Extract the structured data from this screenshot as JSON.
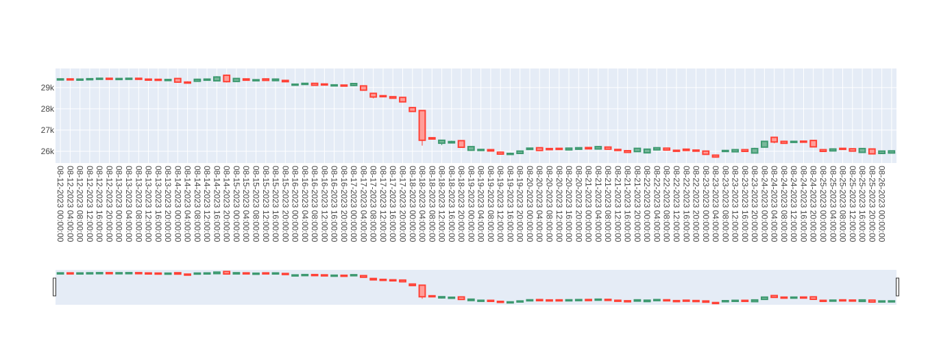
{
  "chart_data": {
    "type": "candlestick",
    "title": "",
    "xlabel": "",
    "ylabel": "",
    "x_start": "2023-08-12 00:00",
    "interval_hours": 4,
    "x_tick_labels": [
      "08-12-2023 00:00:00",
      "08-12-2023 04:00:00",
      "08-12-2023 08:00:00",
      "08-12-2023 12:00:00",
      "08-12-2023 16:00:00",
      "08-12-2023 20:00:00",
      "08-13-2023 00:00:00",
      "08-13-2023 04:00:00",
      "08-13-2023 08:00:00",
      "08-13-2023 12:00:00",
      "08-13-2023 16:00:00",
      "08-13-2023 20:00:00",
      "08-14-2023 00:00:00",
      "08-14-2023 04:00:00",
      "08-14-2023 08:00:00",
      "08-14-2023 12:00:00",
      "08-14-2023 16:00:00",
      "08-14-2023 20:00:00",
      "08-15-2023 00:00:00",
      "08-15-2023 04:00:00",
      "08-15-2023 08:00:00",
      "08-15-2023 12:00:00",
      "08-15-2023 16:00:00",
      "08-15-2023 20:00:00",
      "08-16-2023 00:00:00",
      "08-16-2023 04:00:00",
      "08-16-2023 08:00:00",
      "08-16-2023 12:00:00",
      "08-16-2023 16:00:00",
      "08-16-2023 20:00:00",
      "08-17-2023 00:00:00",
      "08-17-2023 04:00:00",
      "08-17-2023 08:00:00",
      "08-17-2023 12:00:00",
      "08-17-2023 16:00:00",
      "08-17-2023 20:00:00",
      "08-18-2023 00:00:00",
      "08-18-2023 04:00:00",
      "08-18-2023 08:00:00",
      "08-18-2023 12:00:00",
      "08-18-2023 16:00:00",
      "08-18-2023 20:00:00",
      "08-19-2023 00:00:00",
      "08-19-2023 04:00:00",
      "08-19-2023 08:00:00",
      "08-19-2023 12:00:00",
      "08-19-2023 16:00:00",
      "08-19-2023 20:00:00",
      "08-20-2023 00:00:00",
      "08-20-2023 04:00:00",
      "08-20-2023 08:00:00",
      "08-20-2023 12:00:00",
      "08-20-2023 16:00:00",
      "08-20-2023 20:00:00",
      "08-21-2023 00:00:00",
      "08-21-2023 04:00:00",
      "08-21-2023 08:00:00",
      "08-21-2023 12:00:00",
      "08-21-2023 16:00:00",
      "08-21-2023 20:00:00",
      "08-22-2023 00:00:00",
      "08-22-2023 04:00:00",
      "08-22-2023 08:00:00",
      "08-22-2023 12:00:00",
      "08-22-2023 16:00:00",
      "08-22-2023 20:00:00",
      "08-23-2023 00:00:00",
      "08-23-2023 04:00:00",
      "08-23-2023 08:00:00",
      "08-23-2023 12:00:00",
      "08-23-2023 16:00:00",
      "08-23-2023 20:00:00",
      "08-24-2023 00:00:00",
      "08-24-2023 04:00:00",
      "08-24-2023 08:00:00",
      "08-24-2023 12:00:00",
      "08-24-2023 16:00:00",
      "08-24-2023 20:00:00",
      "08-25-2023 00:00:00",
      "08-25-2023 04:00:00",
      "08-25-2023 08:00:00",
      "08-25-2023 12:00:00",
      "08-25-2023 16:00:00",
      "08-25-2023 20:00:00",
      "08-26-2023 00:00:00"
    ],
    "y_tick_values": [
      26000,
      27000,
      28000,
      29000
    ],
    "y_tick_labels": [
      "26k",
      "27k",
      "28k",
      "29k"
    ],
    "ylim": [
      25450,
      29900
    ],
    "grid": true,
    "legend": "none",
    "rangeslider": true,
    "colors": {
      "increasing": "#3d9970",
      "increasing_fill": "#78b89b",
      "decreasing": "#ff4136",
      "decreasing_fill": "#ff9e99",
      "plot_bg": "#e5ecf6",
      "grid": "#ffffff",
      "tick_text": "#444444",
      "slider_handle": "#333333"
    },
    "candles": [
      {
        "o": 29400,
        "h": 29430,
        "l": 29380,
        "c": 29410
      },
      {
        "o": 29410,
        "h": 29430,
        "l": 29380,
        "c": 29390
      },
      {
        "o": 29390,
        "h": 29420,
        "l": 29370,
        "c": 29400
      },
      {
        "o": 29400,
        "h": 29430,
        "l": 29380,
        "c": 29420
      },
      {
        "o": 29420,
        "h": 29450,
        "l": 29400,
        "c": 29440
      },
      {
        "o": 29440,
        "h": 29460,
        "l": 29410,
        "c": 29420
      },
      {
        "o": 29420,
        "h": 29450,
        "l": 29400,
        "c": 29430
      },
      {
        "o": 29430,
        "h": 29460,
        "l": 29410,
        "c": 29440
      },
      {
        "o": 29440,
        "h": 29450,
        "l": 29390,
        "c": 29400
      },
      {
        "o": 29400,
        "h": 29420,
        "l": 29370,
        "c": 29390
      },
      {
        "o": 29390,
        "h": 29400,
        "l": 29350,
        "c": 29360
      },
      {
        "o": 29360,
        "h": 29400,
        "l": 29340,
        "c": 29380
      },
      {
        "o": 29430,
        "h": 29450,
        "l": 29230,
        "c": 29260
      },
      {
        "o": 29260,
        "h": 29300,
        "l": 29200,
        "c": 29240
      },
      {
        "o": 29300,
        "h": 29420,
        "l": 29280,
        "c": 29390
      },
      {
        "o": 29350,
        "h": 29420,
        "l": 29340,
        "c": 29400
      },
      {
        "o": 29320,
        "h": 29540,
        "l": 29300,
        "c": 29500
      },
      {
        "o": 29580,
        "h": 29620,
        "l": 29240,
        "c": 29280
      },
      {
        "o": 29290,
        "h": 29450,
        "l": 29280,
        "c": 29430
      },
      {
        "o": 29410,
        "h": 29420,
        "l": 29330,
        "c": 29350
      },
      {
        "o": 29360,
        "h": 29400,
        "l": 29340,
        "c": 29370
      },
      {
        "o": 29410,
        "h": 29430,
        "l": 29320,
        "c": 29340
      },
      {
        "o": 29330,
        "h": 29420,
        "l": 29310,
        "c": 29400
      },
      {
        "o": 29340,
        "h": 29360,
        "l": 29260,
        "c": 29280
      },
      {
        "o": 29140,
        "h": 29180,
        "l": 29110,
        "c": 29160
      },
      {
        "o": 29150,
        "h": 29220,
        "l": 29130,
        "c": 29200
      },
      {
        "o": 29200,
        "h": 29210,
        "l": 29090,
        "c": 29110
      },
      {
        "o": 29170,
        "h": 29190,
        "l": 29150,
        "c": 29160
      },
      {
        "o": 29120,
        "h": 29150,
        "l": 29090,
        "c": 29130
      },
      {
        "o": 29120,
        "h": 29130,
        "l": 29080,
        "c": 29100
      },
      {
        "o": 29100,
        "h": 29210,
        "l": 29060,
        "c": 29190
      },
      {
        "o": 29080,
        "h": 29100,
        "l": 28880,
        "c": 28880
      },
      {
        "o": 28730,
        "h": 28760,
        "l": 28490,
        "c": 28560
      },
      {
        "o": 28620,
        "h": 28640,
        "l": 28590,
        "c": 28610
      },
      {
        "o": 28570,
        "h": 28580,
        "l": 28480,
        "c": 28500
      },
      {
        "o": 28540,
        "h": 28560,
        "l": 28320,
        "c": 28330
      },
      {
        "o": 28060,
        "h": 28080,
        "l": 27870,
        "c": 27880
      },
      {
        "o": 27920,
        "h": 27930,
        "l": 26270,
        "c": 26520
      },
      {
        "o": 26640,
        "h": 26660,
        "l": 26570,
        "c": 26580
      },
      {
        "o": 26380,
        "h": 26540,
        "l": 26290,
        "c": 26520
      },
      {
        "o": 26400,
        "h": 26500,
        "l": 26370,
        "c": 26460
      },
      {
        "o": 26500,
        "h": 26510,
        "l": 26170,
        "c": 26190
      },
      {
        "o": 26050,
        "h": 26230,
        "l": 26040,
        "c": 26220
      },
      {
        "o": 26050,
        "h": 26110,
        "l": 26040,
        "c": 26090
      },
      {
        "o": 26080,
        "h": 26100,
        "l": 26000,
        "c": 26020
      },
      {
        "o": 25960,
        "h": 25970,
        "l": 25850,
        "c": 25870
      },
      {
        "o": 25870,
        "h": 25940,
        "l": 25860,
        "c": 25900
      },
      {
        "o": 25900,
        "h": 26020,
        "l": 25890,
        "c": 26010
      },
      {
        "o": 26090,
        "h": 26160,
        "l": 26080,
        "c": 26150
      },
      {
        "o": 26170,
        "h": 26180,
        "l": 26030,
        "c": 26040
      },
      {
        "o": 26130,
        "h": 26150,
        "l": 26070,
        "c": 26080
      },
      {
        "o": 26140,
        "h": 26150,
        "l": 26080,
        "c": 26090
      },
      {
        "o": 26070,
        "h": 26170,
        "l": 26060,
        "c": 26150
      },
      {
        "o": 26100,
        "h": 26180,
        "l": 26090,
        "c": 26170
      },
      {
        "o": 26180,
        "h": 26190,
        "l": 26110,
        "c": 26120
      },
      {
        "o": 26110,
        "h": 26230,
        "l": 26100,
        "c": 26220
      },
      {
        "o": 26200,
        "h": 26210,
        "l": 26090,
        "c": 26100
      },
      {
        "o": 26090,
        "h": 26100,
        "l": 26050,
        "c": 26070
      },
      {
        "o": 26030,
        "h": 26040,
        "l": 25930,
        "c": 25950
      },
      {
        "o": 25990,
        "h": 26150,
        "l": 25980,
        "c": 26140
      },
      {
        "o": 25930,
        "h": 26120,
        "l": 25920,
        "c": 26100
      },
      {
        "o": 26070,
        "h": 26190,
        "l": 26060,
        "c": 26170
      },
      {
        "o": 26150,
        "h": 26160,
        "l": 26050,
        "c": 26060
      },
      {
        "o": 26050,
        "h": 26060,
        "l": 26030,
        "c": 26040
      },
      {
        "o": 26100,
        "h": 26120,
        "l": 26030,
        "c": 26040
      },
      {
        "o": 26060,
        "h": 26070,
        "l": 26000,
        "c": 26010
      },
      {
        "o": 26010,
        "h": 26030,
        "l": 25830,
        "c": 25860
      },
      {
        "o": 25820,
        "h": 25840,
        "l": 25700,
        "c": 25730
      },
      {
        "o": 26020,
        "h": 26060,
        "l": 26000,
        "c": 26040
      },
      {
        "o": 25980,
        "h": 26100,
        "l": 25960,
        "c": 26080
      },
      {
        "o": 26080,
        "h": 26090,
        "l": 25990,
        "c": 26000
      },
      {
        "o": 25920,
        "h": 26170,
        "l": 25900,
        "c": 26130
      },
      {
        "o": 26200,
        "h": 26490,
        "l": 26180,
        "c": 26470
      },
      {
        "o": 26660,
        "h": 26680,
        "l": 26380,
        "c": 26440
      },
      {
        "o": 26470,
        "h": 26500,
        "l": 26360,
        "c": 26380
      },
      {
        "o": 26450,
        "h": 26490,
        "l": 26420,
        "c": 26470
      },
      {
        "o": 26480,
        "h": 26500,
        "l": 26460,
        "c": 26470
      },
      {
        "o": 26510,
        "h": 26530,
        "l": 26190,
        "c": 26210
      },
      {
        "o": 26080,
        "h": 26100,
        "l": 25990,
        "c": 26000
      },
      {
        "o": 26020,
        "h": 26130,
        "l": 26010,
        "c": 26110
      },
      {
        "o": 26140,
        "h": 26150,
        "l": 26110,
        "c": 26120
      },
      {
        "o": 26120,
        "h": 26130,
        "l": 26000,
        "c": 26010
      },
      {
        "o": 25950,
        "h": 26150,
        "l": 25940,
        "c": 26130
      },
      {
        "o": 26110,
        "h": 26120,
        "l": 25860,
        "c": 25880
      },
      {
        "o": 25900,
        "h": 26030,
        "l": 25890,
        "c": 26010
      },
      {
        "o": 25920,
        "h": 26030,
        "l": 25910,
        "c": 26020
      }
    ]
  }
}
